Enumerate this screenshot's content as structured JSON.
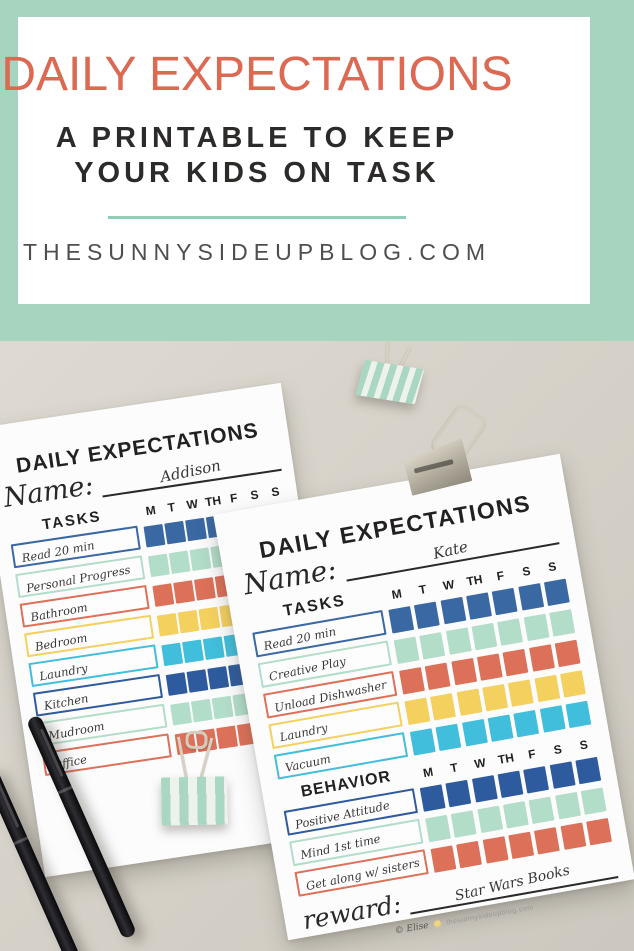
{
  "banner": {
    "title": "DAILY EXPECTATIONS",
    "subtitle_lines": [
      "A PRINTABLE TO KEEP",
      "YOUR KIDS ON TASK"
    ],
    "url": "THESUNNYSIDEUPBLOG.COM",
    "colors": {
      "mint": "#a7d4bf",
      "coral": "#dc6952",
      "text": "#2d2b2a",
      "url_gray": "#4e4e4e"
    }
  },
  "days": [
    "M",
    "T",
    "W",
    "TH",
    "F",
    "S",
    "S"
  ],
  "palette": {
    "blue": "#3a68a3",
    "mint": "#b2ddc9",
    "coral": "#dd7058",
    "yellow": "#f4d05f",
    "cyan": "#41bedb",
    "navy": "#2e5b9d"
  },
  "icons": {
    "sun": "✸"
  },
  "printables": [
    {
      "title": "DAILY EXPECTATIONS",
      "name_label": "Name:",
      "name_value": "Addison",
      "tasks_label": "TASKS",
      "task_rows": [
        {
          "label": "Read 20 min",
          "color": "blue"
        },
        {
          "label": "Personal Progress",
          "color": "mint"
        },
        {
          "label": "Bathroom",
          "color": "coral"
        },
        {
          "label": "Bedroom",
          "color": "yellow"
        },
        {
          "label": "Laundry",
          "color": "cyan"
        },
        {
          "label": "Kitchen",
          "color": "navy"
        },
        {
          "label": "Mudroom",
          "color": "mint"
        },
        {
          "label": "Office",
          "color": "coral"
        }
      ]
    },
    {
      "title": "DAILY EXPECTATIONS",
      "name_label": "Name:",
      "name_value": "Kate",
      "tasks_label": "TASKS",
      "task_rows": [
        {
          "label": "Read 20 min",
          "color": "blue"
        },
        {
          "label": "Creative Play",
          "color": "mint"
        },
        {
          "label": "Unload Dishwasher",
          "color": "coral"
        },
        {
          "label": "Laundry",
          "color": "yellow"
        },
        {
          "label": "Vacuum",
          "color": "cyan"
        }
      ],
      "behavior_label": "BEHAVIOR",
      "behavior_rows": [
        {
          "label": "Positive Attitude",
          "color": "navy"
        },
        {
          "label": "Mind 1st time",
          "color": "mint"
        },
        {
          "label": "Get along w/ sisters",
          "color": "coral"
        }
      ],
      "reward_label": "reward:",
      "reward_value": "Star Wars Books",
      "footer_credit": "© Elise",
      "footer_url": "thesunnysideupblog.com"
    }
  ]
}
